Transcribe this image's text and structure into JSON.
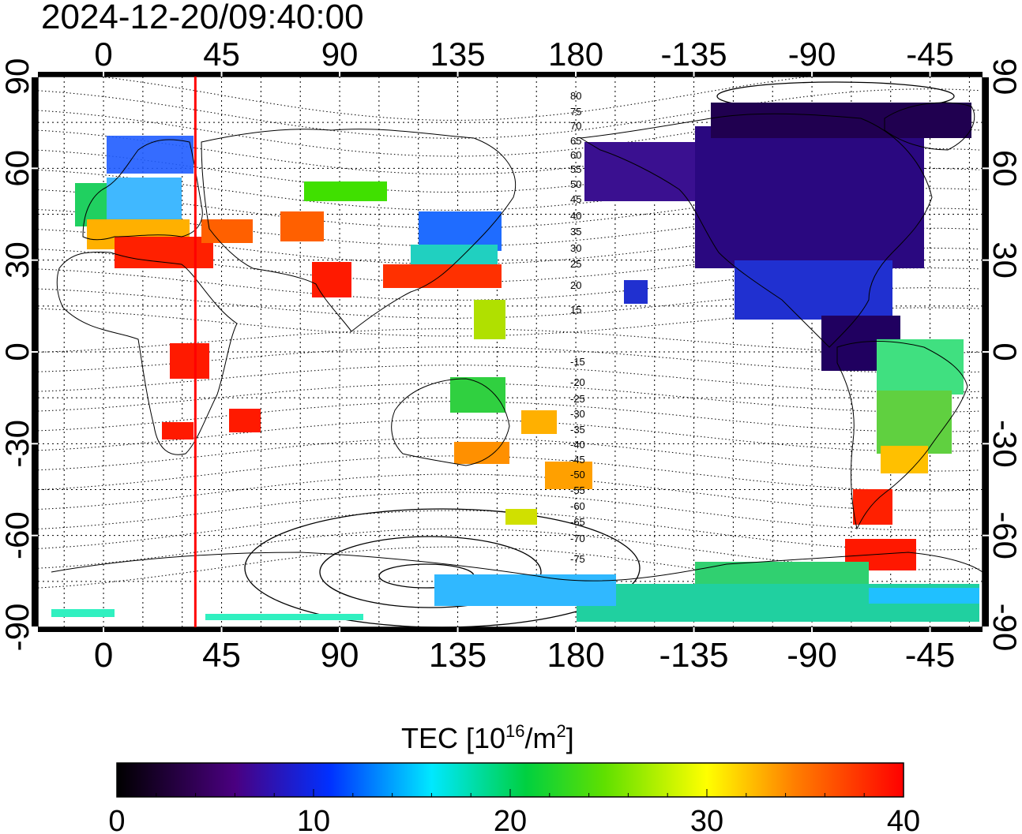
{
  "header": {
    "timestamp": "2024-12-20/09:40:00"
  },
  "map": {
    "top_lon_ticks": [
      "0",
      "45",
      "90",
      "135",
      "180",
      "-135",
      "-90",
      "-45"
    ],
    "bottom_lon_ticks": [
      "0",
      "45",
      "90",
      "135",
      "180",
      "-135",
      "-90",
      "-45"
    ],
    "left_lat_ticks": [
      "90",
      "60",
      "30",
      "0",
      "-30",
      "-60",
      "-90"
    ],
    "right_lat_ticks": [
      "90",
      "60",
      "30",
      "0",
      "-30",
      "-60",
      "-90"
    ],
    "contour_labels": [
      "80",
      "75",
      "70",
      "65",
      "60",
      "55",
      "50",
      "45",
      "40",
      "35",
      "30",
      "25",
      "20",
      "15",
      "-15",
      "-20",
      "-25",
      "-30",
      "-35",
      "-40",
      "-45",
      "-50",
      "-55",
      "-60",
      "-65",
      "-70",
      "-75"
    ],
    "sun_longitude_deg": 35,
    "sun_line_color": "#ff0000"
  },
  "colorbar": {
    "title_main": "TEC  [10",
    "title_sup1": "16",
    "title_mid": "/m",
    "title_sup2": "2",
    "title_end": "]",
    "ticks": [
      "0",
      "10",
      "20",
      "30",
      "40"
    ],
    "range": [
      0,
      40
    ],
    "colormap": [
      "#000000",
      "#4a0080",
      "#0030ff",
      "#00e8ff",
      "#00d040",
      "#ffff00",
      "#ff8000",
      "#ff0000"
    ]
  }
}
